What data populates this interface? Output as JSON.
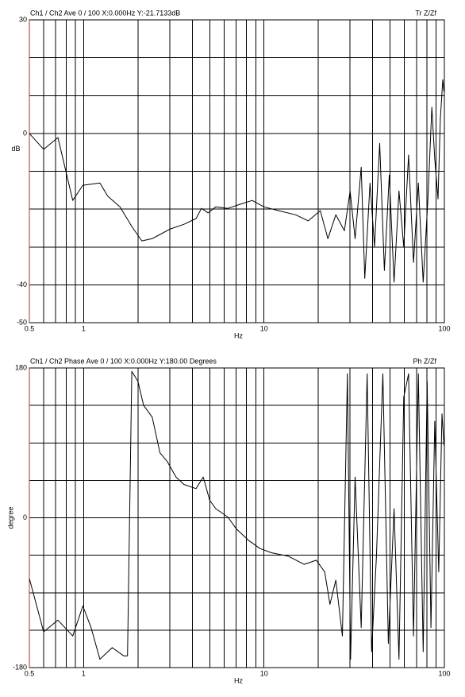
{
  "chart_data": [
    {
      "type": "line",
      "title": "Ch1 / Ch2  Ave 0 / 100  X:0.000Hz  Y:-21.7133dB",
      "title_right": "Tr Z/Zf",
      "ylabel": "dB",
      "xlabel": "Hz",
      "log_x": true,
      "xlim": [
        0.5,
        100
      ],
      "xticks": [
        0.5,
        1,
        10,
        100
      ],
      "xgrid": [
        0.5,
        0.6,
        0.7,
        0.8,
        0.9,
        1,
        2,
        3,
        4,
        5,
        6,
        7,
        8,
        9,
        10,
        20,
        30,
        40,
        50,
        60,
        70,
        80,
        90,
        100
      ],
      "ylim": [
        -50,
        30
      ],
      "yticks": [
        30,
        0,
        -40,
        -50
      ],
      "ygrid": [
        30,
        20,
        10,
        0,
        -10,
        -20,
        -30,
        -40,
        -50
      ],
      "color": "#000000",
      "x": [
        0.5,
        0.6,
        0.72,
        0.87,
        0.99,
        1.23,
        1.36,
        1.59,
        1.85,
        2.1,
        2.4,
        2.65,
        3.0,
        3.6,
        4.2,
        4.5,
        4.9,
        5.4,
        6.3,
        7.3,
        8.6,
        10,
        12,
        15,
        17.6,
        20.5,
        22.6,
        25,
        27.9,
        30,
        32,
        34.6,
        36.2,
        38.7,
        41,
        43.8,
        46.5,
        49.5,
        52.6,
        56,
        59.5,
        63.3,
        67.4,
        71.7,
        76.3,
        81.1,
        85.2,
        88.5,
        92.2,
        95,
        98,
        99.5
      ],
      "values": [
        0,
        -4.2,
        -1.1,
        -17.7,
        -13.7,
        -13.1,
        -16.6,
        -19.4,
        -24.6,
        -28.4,
        -27.8,
        -26.7,
        -25.3,
        -24,
        -22.5,
        -19.8,
        -21,
        -19.4,
        -19.8,
        -18.8,
        -17.7,
        -19.4,
        -20.4,
        -21.5,
        -23.1,
        -20.4,
        -27.8,
        -21.5,
        -25.7,
        -15.2,
        -27.8,
        -8.9,
        -38.3,
        -13.1,
        -29.9,
        -2.6,
        -36.2,
        -11,
        -39.3,
        -15.2,
        -29.9,
        -5.7,
        -34.1,
        -13.1,
        -39.3,
        -17.3,
        6.9,
        -6.8,
        -17.3,
        3.7,
        14.2,
        11.1
      ]
    },
    {
      "type": "line",
      "title": "Ch1 / Ch2  Phase Ave 0 / 100  X:0.000Hz  Y:180.00 Degrees",
      "title_right": "Ph Z/Zf",
      "ylabel": "degree",
      "xlabel": "Hz",
      "log_x": true,
      "xlim": [
        0.5,
        100
      ],
      "xticks": [
        0.5,
        1,
        10,
        100
      ],
      "xgrid": [
        0.5,
        0.6,
        0.7,
        0.8,
        0.9,
        1,
        2,
        3,
        4,
        5,
        6,
        7,
        8,
        9,
        10,
        20,
        30,
        40,
        50,
        60,
        70,
        80,
        90,
        100
      ],
      "ylim": [
        -180,
        180
      ],
      "yticks": [
        180,
        0,
        -180
      ],
      "ygrid": [
        180,
        135,
        90,
        45,
        0,
        -45,
        -90,
        -135,
        -180
      ],
      "color": "#000000",
      "x": [
        0.5,
        0.6,
        0.72,
        0.87,
        0.99,
        1.1,
        1.23,
        1.44,
        1.67,
        1.75,
        1.85,
        2.0,
        2.15,
        2.4,
        2.65,
        2.9,
        3.25,
        3.6,
        4.2,
        4.6,
        5.0,
        5.4,
        6.3,
        7.0,
        8.2,
        9.5,
        11,
        13.6,
        16.7,
        19.5,
        21.7,
        23.2,
        25,
        27.2,
        29,
        30.2,
        32,
        34.6,
        37.3,
        39.5,
        42,
        45.6,
        48.9,
        52.6,
        56,
        59.5,
        63.3,
        67.4,
        71.7,
        76.3,
        80.3,
        84.3,
        88.5,
        93.1,
        97,
        99.5
      ],
      "values": [
        -73,
        -137,
        -123,
        -142,
        -106,
        -132,
        -170,
        -156,
        -166,
        -166,
        176,
        164,
        135,
        121,
        78,
        68,
        49,
        40,
        35,
        49,
        21,
        11,
        1,
        -13,
        -27,
        -37,
        -42,
        -46,
        -56,
        -51,
        -65,
        -104,
        -75,
        -142,
        173,
        -170,
        49,
        -132,
        173,
        -161,
        -46,
        173,
        -151,
        11,
        -170,
        145,
        173,
        -142,
        173,
        -161,
        164,
        -132,
        116,
        -65,
        125,
        87
      ]
    }
  ]
}
